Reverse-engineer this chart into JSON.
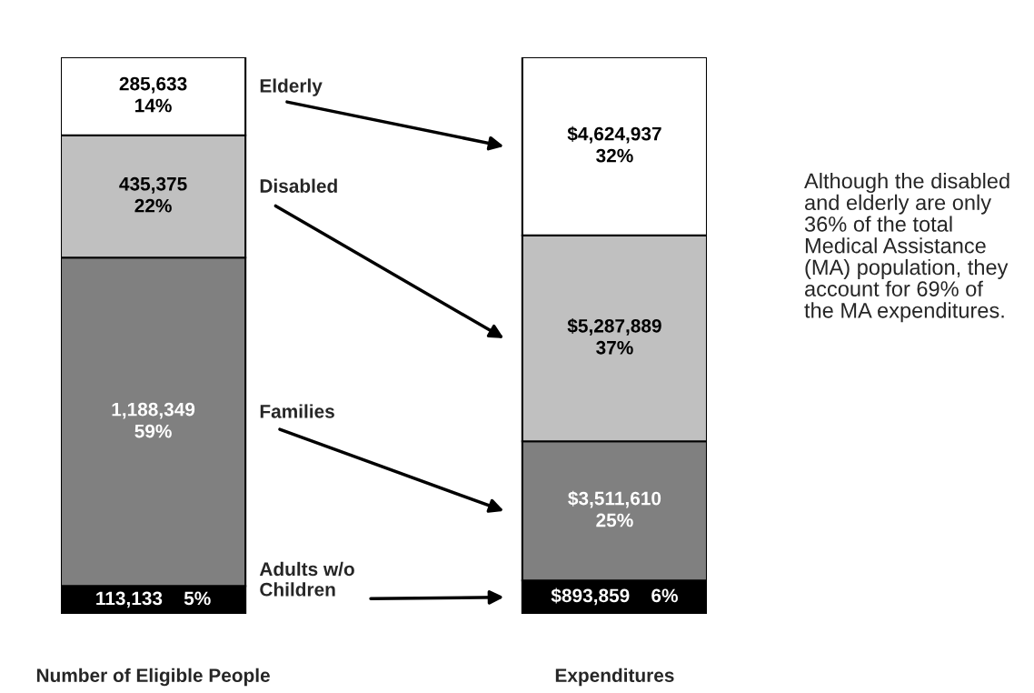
{
  "chart_data": {
    "type": "bar",
    "stacked": true,
    "categories": [
      "Number of Eligible People",
      "Expenditures"
    ],
    "series": [
      {
        "name": "Adults w/o\nChildren",
        "color": "#000000",
        "values": [
          5,
          6
        ],
        "value_labels": [
          "113,133    5%",
          "$893,859    6%"
        ]
      },
      {
        "name": "Families",
        "color": "#808080",
        "values": [
          59,
          25
        ],
        "value_labels": [
          "1,188,349\n59%",
          "$3,511,610\n25%"
        ]
      },
      {
        "name": "Disabled",
        "color": "#c0c0c0",
        "values": [
          22,
          37
        ],
        "value_labels": [
          "435,375\n22%",
          "$5,287,889\n37%"
        ]
      },
      {
        "name": "Elderly",
        "color": "#ffffff",
        "values": [
          14,
          32
        ],
        "value_labels": [
          "285,633\n14%",
          "$4,624,937\n32%"
        ]
      }
    ],
    "ylim": [
      0,
      100
    ],
    "tick_labels": "x",
    "annotations": [
      "Although the disabled\nand elderly are only\n36% of the total\nMedical Assistance\n(MA) population, they\naccount for 69% of\nthe MA expenditures."
    ]
  }
}
